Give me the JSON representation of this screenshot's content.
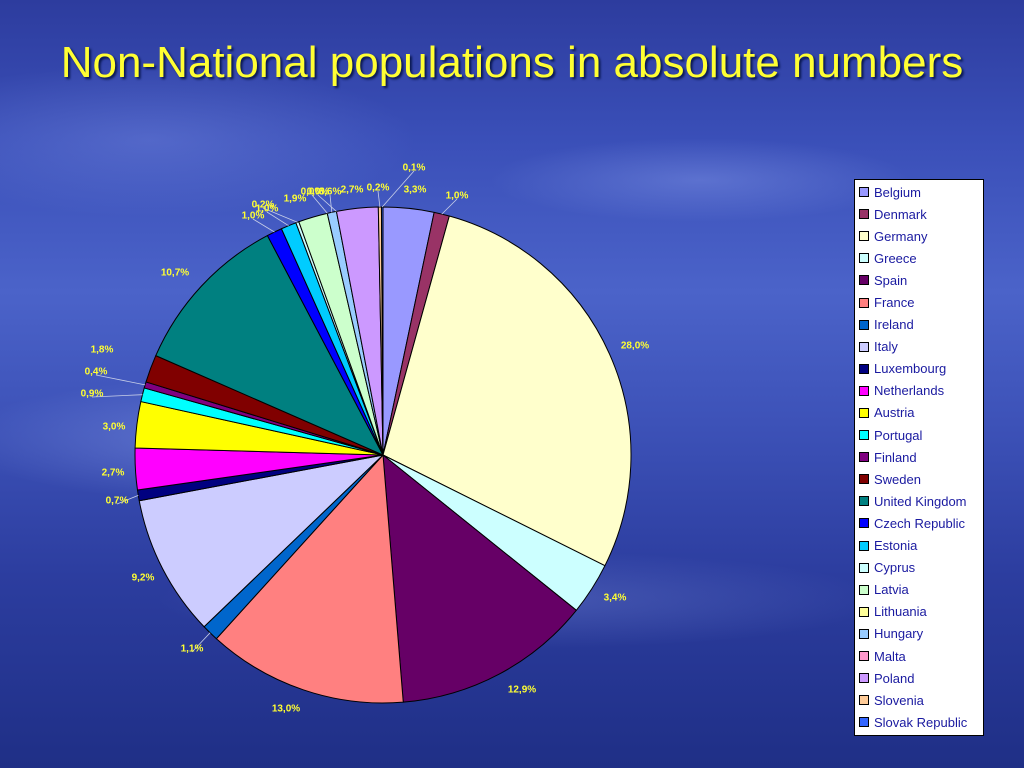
{
  "slide": {
    "title": "Non-National populations in absolute numbers"
  },
  "chart_data": {
    "type": "pie",
    "title": "Non-National populations in absolute numbers",
    "legend_position": "right",
    "slices": [
      {
        "name": "Belgium",
        "value": 3.3,
        "label": "3,3%",
        "color": "#9999ff"
      },
      {
        "name": "Denmark",
        "value": 1.0,
        "label": "1,0%",
        "color": "#993366"
      },
      {
        "name": "Germany",
        "value": 28.0,
        "label": "28,0%",
        "color": "#ffffcc"
      },
      {
        "name": "Greece",
        "value": 3.4,
        "label": "3,4%",
        "color": "#ccffff"
      },
      {
        "name": "Spain",
        "value": 12.9,
        "label": "12,9%",
        "color": "#660066"
      },
      {
        "name": "France",
        "value": 13.0,
        "label": "13,0%",
        "color": "#ff8080"
      },
      {
        "name": "Ireland",
        "value": 1.1,
        "label": "1,1%",
        "color": "#0066cc"
      },
      {
        "name": "Italy",
        "value": 9.2,
        "label": "9,2%",
        "color": "#ccccff"
      },
      {
        "name": "Luxembourg",
        "value": 0.7,
        "label": "0,7%",
        "color": "#000080"
      },
      {
        "name": "Netherlands",
        "value": 2.7,
        "label": "2,7%",
        "color": "#ff00ff"
      },
      {
        "name": "Austria",
        "value": 3.0,
        "label": "3,0%",
        "color": "#ffff00"
      },
      {
        "name": "Portugal",
        "value": 0.9,
        "label": "0,9%",
        "color": "#00ffff"
      },
      {
        "name": "Finland",
        "value": 0.4,
        "label": "0,4%",
        "color": "#800080"
      },
      {
        "name": "Sweden",
        "value": 1.8,
        "label": "1,8%",
        "color": "#800000"
      },
      {
        "name": "United Kingdom",
        "value": 10.7,
        "label": "10,7%",
        "color": "#008080"
      },
      {
        "name": "Czech Republic",
        "value": 1.0,
        "label": "1,0%",
        "color": "#0000ff"
      },
      {
        "name": "Estonia",
        "value": 1.0,
        "label": "1,0%",
        "color": "#00ccff"
      },
      {
        "name": "Cyprus",
        "value": 0.2,
        "label": "0,2%",
        "color": "#ccffff"
      },
      {
        "name": "Latvia",
        "value": 1.9,
        "label": "1,9%",
        "color": "#ccffcc"
      },
      {
        "name": "Lithuania",
        "value": 0.0,
        "label": "0,0%",
        "color": "#ffff99"
      },
      {
        "name": "Hungary",
        "value": 0.6,
        "label": "0,6%",
        "color": "#99ccff"
      },
      {
        "name": "Malta",
        "value": 0.0,
        "label": "0,0%",
        "color": "#ff99cc"
      },
      {
        "name": "Poland",
        "value": 2.7,
        "label": "2,7%",
        "color": "#cc99ff"
      },
      {
        "name": "Slovenia",
        "value": 0.2,
        "label": "0,2%",
        "color": "#ffcc99"
      },
      {
        "name": "Slovak Republic",
        "value": 0.1,
        "label": "0,1%",
        "color": "#3366ff"
      }
    ]
  }
}
